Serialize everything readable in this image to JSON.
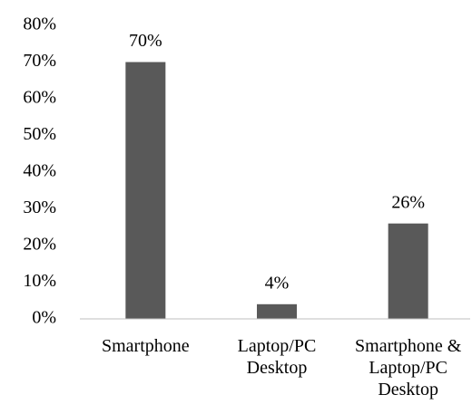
{
  "chart_data": {
    "type": "bar",
    "categories": [
      "Smartphone",
      "Laptop/PC Desktop",
      "Smartphone & Laptop/PC Desktop"
    ],
    "values": [
      70,
      4,
      26
    ],
    "value_labels": [
      "70%",
      "4%",
      "26%"
    ],
    "color": "#595959",
    "ylim": [
      0,
      80
    ],
    "yticks": [
      {
        "value": 0,
        "label": "0%"
      },
      {
        "value": 10,
        "label": "10%"
      },
      {
        "value": 20,
        "label": "20%"
      },
      {
        "value": 30,
        "label": "30%"
      },
      {
        "value": 40,
        "label": "40%"
      },
      {
        "value": 50,
        "label": "50%"
      },
      {
        "value": 60,
        "label": "60%"
      },
      {
        "value": 70,
        "label": "70%"
      },
      {
        "value": 80,
        "label": "80%"
      }
    ],
    "grid": false
  }
}
